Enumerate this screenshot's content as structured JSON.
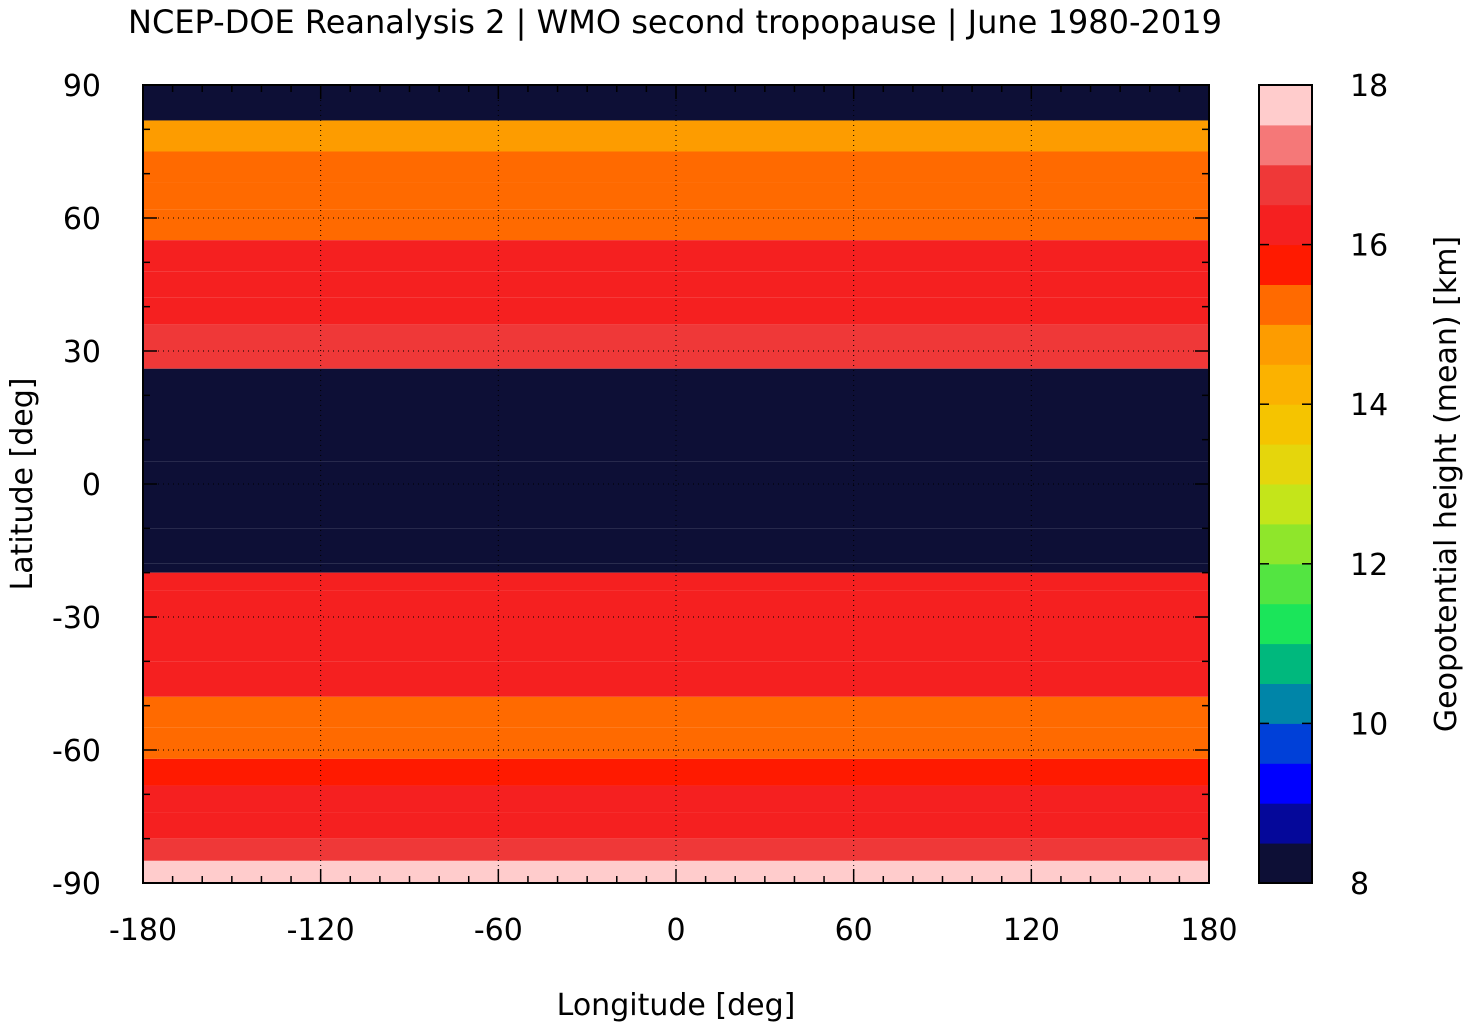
{
  "chart_data": {
    "type": "heatmap",
    "title": "NCEP-DOE Reanalysis 2 | WMO second tropopause | June 1980-2019",
    "xlabel": "Longitude [deg]",
    "ylabel": "Latitude [deg]",
    "colorbar_label": "Geopotential height (mean) [km]",
    "xlim": [
      -180,
      180
    ],
    "ylim": [
      -90,
      90
    ],
    "x_ticks": [
      -180,
      -120,
      -60,
      0,
      60,
      120,
      180
    ],
    "y_ticks": [
      90,
      60,
      30,
      0,
      -30,
      -60,
      -90
    ],
    "colorbar_range": [
      8,
      18
    ],
    "colorbar_ticks": [
      18,
      16,
      14,
      12,
      10,
      8
    ],
    "colorbar_colors": [
      "#0d0f36",
      "#05089a",
      "#0000ff",
      "#0040d8",
      "#0085a8",
      "#00b87d",
      "#1be55a",
      "#53e541",
      "#8fe62b",
      "#c4e51a",
      "#e5d60c",
      "#f5c400",
      "#fbb200",
      "#fd9c00",
      "#ff6a00",
      "#ff1a00",
      "#f52020",
      "#ef3838",
      "#f57878",
      "#ffcccc"
    ],
    "grid": true,
    "zonal_profile": {
      "latitudes": [
        90,
        82,
        75,
        68,
        62,
        55,
        48,
        42,
        36,
        30,
        26,
        15,
        5,
        0,
        -10,
        -18,
        -20,
        -24,
        -30,
        -40,
        -48,
        -55,
        -62,
        -68,
        -74,
        -80,
        -85,
        -90
      ],
      "height_km": [
        8.2,
        14.8,
        15.0,
        15.0,
        15.2,
        16.0,
        16.2,
        16.4,
        16.5,
        16.6,
        8.1,
        8.1,
        8.1,
        8.1,
        8.1,
        8.1,
        16.3,
        16.4,
        16.3,
        16.2,
        15.3,
        15.2,
        15.5,
        16.2,
        16.4,
        16.8,
        17.8,
        17.3
      ]
    }
  }
}
